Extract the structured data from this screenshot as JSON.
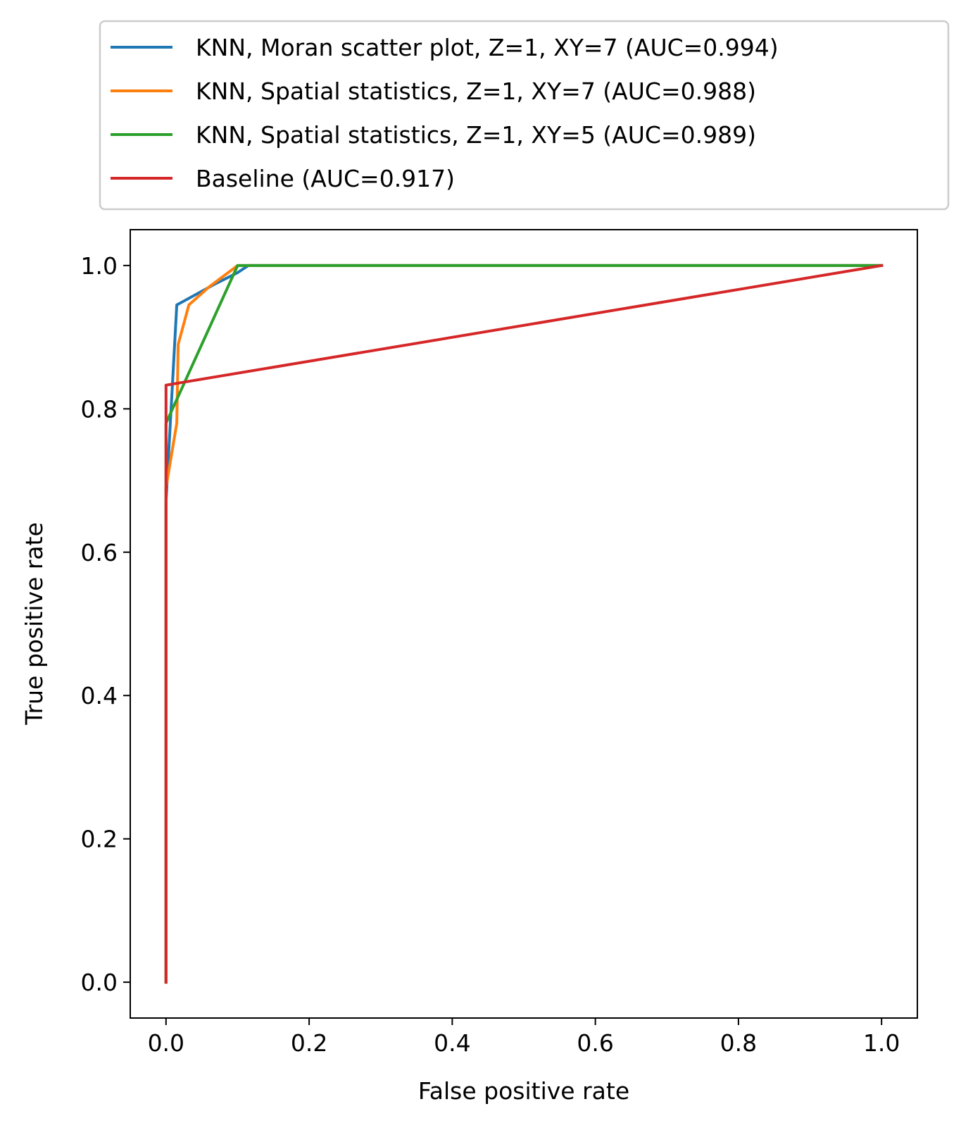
{
  "chart_data": {
    "type": "line",
    "title": "",
    "xlabel": "False positive rate",
    "ylabel": "True positive rate",
    "xlim": [
      -0.05,
      1.05
    ],
    "ylim": [
      -0.05,
      1.05
    ],
    "xticks": [
      "0.0",
      "0.2",
      "0.4",
      "0.6",
      "0.8",
      "1.0"
    ],
    "yticks": [
      "0.0",
      "0.2",
      "0.4",
      "0.6",
      "0.8",
      "1.0"
    ],
    "grid": false,
    "legend_position": "above plot",
    "series": [
      {
        "name": "KNN, Moran scatter plot, Z=1, XY=7 (AUC=0.994)",
        "color": "#1f77b4",
        "x": [
          0.0,
          0.0,
          0.015,
          0.07,
          0.1,
          0.115,
          1.0
        ],
        "y": [
          0.0,
          0.67,
          0.945,
          0.975,
          0.99,
          1.0,
          1.0
        ]
      },
      {
        "name": "KNN, Spatial statistics, Z=1, XY=7 (AUC=0.988)",
        "color": "#ff7f0e",
        "x": [
          0.0,
          0.0,
          0.015,
          0.017,
          0.032,
          0.06,
          0.1,
          1.0
        ],
        "y": [
          0.0,
          0.69,
          0.78,
          0.89,
          0.945,
          0.97,
          1.0,
          1.0
        ]
      },
      {
        "name": "KNN, Spatial statistics, Z=1, XY=5 (AUC=0.989)",
        "color": "#2ca02c",
        "x": [
          0.0,
          0.0,
          0.0,
          0.1,
          1.0
        ],
        "y": [
          0.0,
          0.67,
          0.78,
          1.0,
          1.0
        ]
      },
      {
        "name": "Baseline (AUC=0.917)",
        "color": "#d62728",
        "x": [
          0.0,
          0.0,
          1.0
        ],
        "y": [
          0.0,
          0.833,
          1.0
        ]
      }
    ]
  }
}
